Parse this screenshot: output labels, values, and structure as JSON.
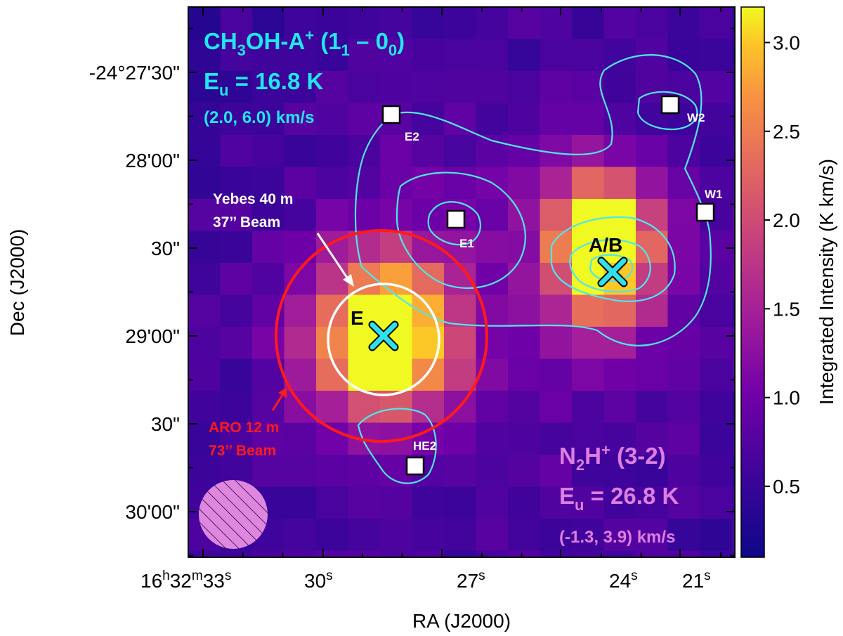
{
  "chart_data": {
    "type": "heatmap",
    "title": "",
    "xlabel": "RA (J2000)",
    "ylabel": "Dec (J2000)",
    "colorbar": {
      "label": "Integrated Intensity (K km/s)",
      "ticks": [
        "0.5",
        "1.0",
        "1.5",
        "2.0",
        "2.5",
        "3.0"
      ],
      "range": [
        0.1,
        3.2
      ]
    },
    "x_ticks": [
      {
        "base": "16",
        "s1": "h",
        "mid": "32",
        "s2": "m",
        "last": "33",
        "s3": "s"
      },
      {
        "base": "30",
        "s3": "s"
      },
      {
        "base": "27",
        "s3": "s"
      },
      {
        "base": "24",
        "s3": "s"
      },
      {
        "base": "21",
        "s3": "s"
      }
    ],
    "y_ticks": [
      "-24°27'30\"",
      "28'00\"",
      "30\"",
      "29'00\"",
      "30\"",
      "30'00\""
    ],
    "ch3oh_label": {
      "species": {
        "pre": "CH",
        "sub1": "3",
        "mid": "OH-A",
        "sup": "+",
        "trans": " (1",
        "sub2": "1",
        "dash": " – 0",
        "sub3": "0",
        "close": ")"
      },
      "eu": {
        "pre": "E",
        "sub": "u",
        "val": " = 16.8 K"
      },
      "vel": "(2.0, 6.0) km/s"
    },
    "n2h_label": {
      "species": {
        "pre": "N",
        "sub": "2",
        "mid": "H",
        "sup": "+",
        "trans": " (3-2)"
      },
      "eu": {
        "pre": "E",
        "sub": "u",
        "val": " = 26.8 K"
      },
      "vel": "(-1.3, 3.9) km/s"
    },
    "beams": {
      "yebes_line1": "Yebes 40 m",
      "yebes_line2": "37’’ Beam",
      "aro_line1": "ARO 12 m",
      "aro_line2": "73’’ Beam"
    },
    "positions": [
      {
        "name": "E2",
        "marker": "square"
      },
      {
        "name": "E1",
        "marker": "square"
      },
      {
        "name": "W2",
        "marker": "square"
      },
      {
        "name": "W1",
        "marker": "square"
      },
      {
        "name": "HE2",
        "marker": "square"
      },
      {
        "name": "E",
        "marker": "cross"
      },
      {
        "name": "A/B",
        "marker": "cross"
      }
    ],
    "emission_peaks": [
      {
        "source": "E",
        "peak_intensity": 3.2
      },
      {
        "source": "A/B",
        "peak_intensity": 3.0
      }
    ],
    "colors": {
      "contour": "#4ee6ee",
      "ch3oh_text": "#22e6f0",
      "n2h_text": "#dd7ee0",
      "aro_beam": "#ff1a1a",
      "yebes_beam": "#ffffff",
      "background": "#2a0f88"
    }
  }
}
